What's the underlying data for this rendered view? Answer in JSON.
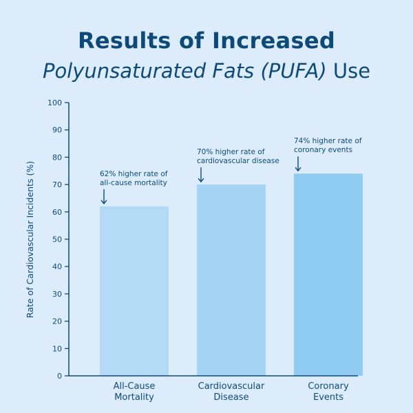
{
  "chart_data": {
    "type": "bar",
    "title_line1": "Results of Increased",
    "title_line2_italic": "Polyunsaturated Fats (PUFA)",
    "title_line2_plain": "Use",
    "ylabel": "Rate of Cardiovascular Incidents (%)",
    "xlabel": "",
    "ylim": [
      0,
      100
    ],
    "yticks": [
      0,
      10,
      20,
      30,
      40,
      50,
      60,
      70,
      80,
      90,
      100
    ],
    "categories": [
      [
        "All-Cause",
        "Mortality"
      ],
      [
        "Cardiovascular",
        "Disease"
      ],
      [
        "Coronary",
        "Events"
      ]
    ],
    "values": [
      62,
      70,
      74
    ],
    "annotations": [
      [
        "62% higher rate of",
        "all-cause mortality"
      ],
      [
        "70% higher rate of",
        "cardiovascular disease"
      ],
      [
        "74% higher rate of",
        "coronary events"
      ]
    ],
    "bar_colors": [
      "#b4dbf6",
      "#a4d3f4",
      "#90cbf2"
    ],
    "axis_color": "#0d4a78",
    "grid": false,
    "legend": "none"
  }
}
